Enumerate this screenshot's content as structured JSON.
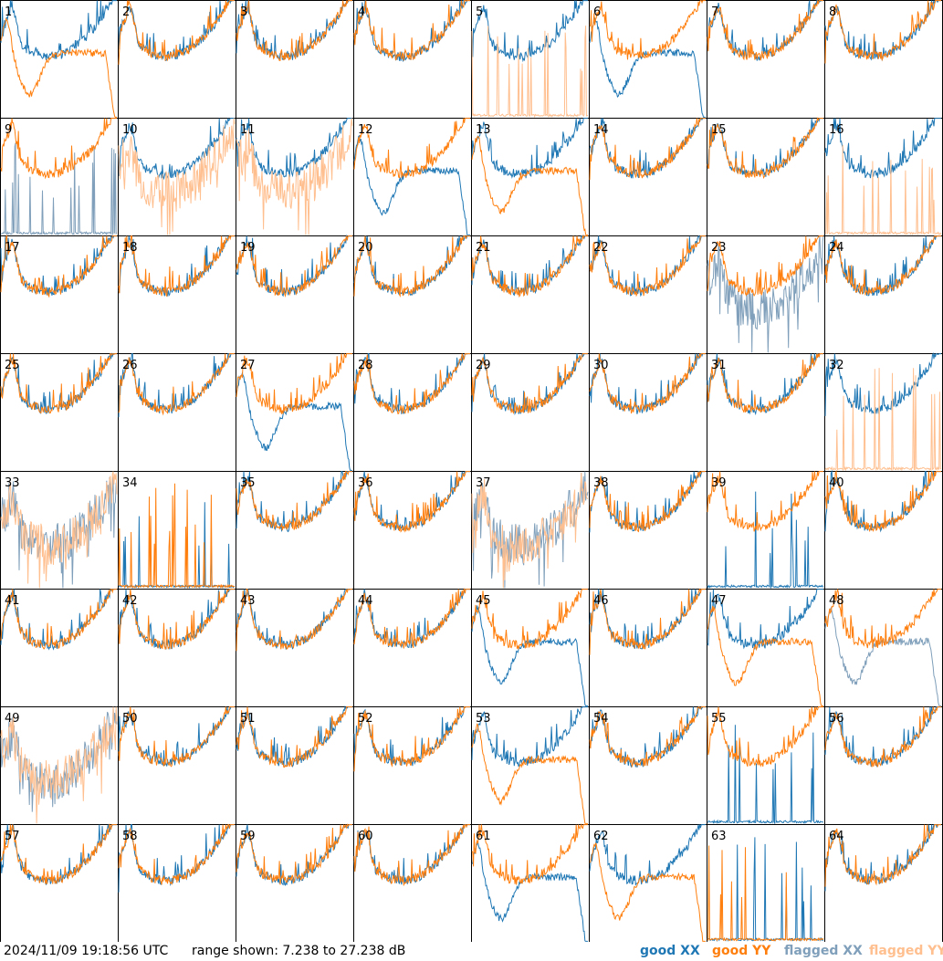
{
  "chart_data": {
    "type": "line",
    "layout": "small-multiples 8x8",
    "xlabel": "",
    "ylabel": "",
    "range_db": [
      7.238,
      27.238
    ],
    "tiles": [
      1,
      2,
      3,
      4,
      5,
      6,
      7,
      8,
      9,
      10,
      11,
      12,
      13,
      14,
      15,
      16,
      17,
      18,
      19,
      20,
      21,
      22,
      23,
      24,
      25,
      26,
      27,
      28,
      29,
      30,
      31,
      32,
      33,
      34,
      35,
      36,
      37,
      38,
      39,
      40,
      41,
      42,
      43,
      44,
      45,
      46,
      47,
      48,
      49,
      50,
      51,
      52,
      53,
      54,
      55,
      56,
      57,
      58,
      59,
      60,
      61,
      62,
      63,
      64
    ],
    "tile_status": {
      "xx_flagged": [
        9,
        23,
        33,
        37,
        48,
        49
      ],
      "yy_flagged": [
        5,
        10,
        11,
        16,
        32,
        33,
        37,
        49
      ],
      "xx_dead": [
        9,
        34,
        39,
        55,
        63
      ],
      "yy_dead": [
        5,
        16,
        32,
        34,
        63
      ],
      "xx_drop": [
        6,
        12,
        27,
        45,
        48,
        61
      ],
      "yy_drop": [
        1,
        13,
        47,
        53,
        62
      ]
    },
    "series": [
      {
        "name": "good XX",
        "color": "#1f77b4"
      },
      {
        "name": "good YY",
        "color": "#ff7f0e"
      },
      {
        "name": "flagged XX",
        "color": "#7f9fba"
      },
      {
        "name": "flagged YY",
        "color": "#ffbf8f"
      }
    ]
  },
  "footer": {
    "timestamp": "2024/11/09 19:18:56 UTC",
    "range_text": "range shown: 7.238 to 27.238 dB"
  }
}
